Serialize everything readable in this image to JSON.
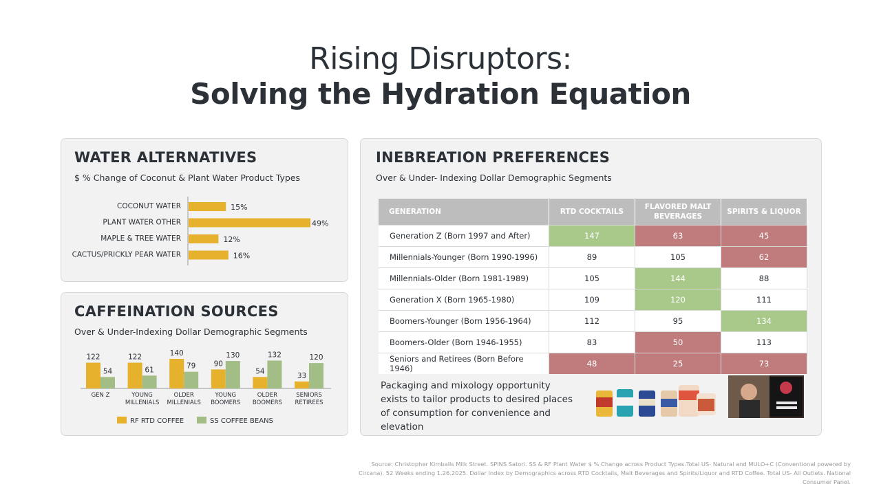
{
  "title": {
    "line1": "Rising Disruptors:",
    "line2": "Solving the Hydration Equation"
  },
  "water": {
    "heading": "WATER ALTERNATIVES",
    "subtitle": "$ % Change of Coconut & Plant Water Product Types"
  },
  "caffeination": {
    "heading": "CAFFEINATION SOURCES",
    "subtitle": "Over & Under-Indexing Dollar Demographic Segments"
  },
  "inebriation": {
    "heading": "INEBREATION PREFERENCES",
    "subtitle": "Over & Under- Indexing Dollar Demographic Segments",
    "opportunity_text": "Packaging and mixology opportunity exists to tailor products to desired places of consumption for convenience and elevation"
  },
  "colors": {
    "over_index": "#a9c98b",
    "under_index": "#c07b7d",
    "rf_rtd_coffee": "#e6b12c",
    "ss_coffee_beans": "#a3bd86",
    "header_gray": "#bdbdbd"
  },
  "chart_data": [
    {
      "type": "bar",
      "orientation": "horizontal",
      "categories": [
        "COCONUT WATER",
        "PLANT WATER OTHER",
        "MAPLE & TREE WATER",
        "CACTUS/PRICKLY PEAR WATER"
      ],
      "values": [
        15,
        49,
        12,
        16
      ],
      "value_labels": [
        "15%",
        "49%",
        "12%",
        "16%"
      ],
      "color": "#e6b12c",
      "xlim": [
        0,
        49
      ]
    },
    {
      "type": "bar",
      "orientation": "vertical",
      "categories": [
        "GEN Z",
        "YOUNG MILLENIALS",
        "OLDER MILLENIALS",
        "YOUNG BOOMERS",
        "OLDER BOOMERS",
        "SENIORS RETIREES"
      ],
      "category_lines": [
        [
          "GEN Z"
        ],
        [
          "YOUNG",
          "MILLENIALS"
        ],
        [
          "OLDER",
          "MILLENIALS"
        ],
        [
          "YOUNG",
          "BOOMERS"
        ],
        [
          "OLDER",
          "BOOMERS"
        ],
        [
          "SENIORS",
          "RETIREES"
        ]
      ],
      "series": [
        {
          "name": "RF RTD COFFEE",
          "values": [
            122,
            122,
            140,
            90,
            54,
            33
          ],
          "color": "#e6b12c"
        },
        {
          "name": "SS COFFEE BEANS",
          "values": [
            54,
            61,
            79,
            130,
            132,
            120
          ],
          "color": "#a3bd86"
        }
      ],
      "ylim": [
        0,
        140
      ],
      "legend": "bottom"
    },
    {
      "type": "table",
      "columns": [
        "GENERATION",
        "RTD COCKTAILS",
        "FLAVORED MALT BEVERAGES",
        "SPIRITS & LIQUOR"
      ],
      "column_lines": [
        [
          "GENERATION"
        ],
        [
          "RTD COCKTAILS"
        ],
        [
          "FLAVORED MALT",
          "BEVERAGES"
        ],
        [
          "SPIRITS & LIQUOR"
        ]
      ],
      "rows": [
        {
          "generation": "Generation Z (Born 1997 and After)",
          "values": [
            147,
            63,
            45
          ],
          "status": [
            "over",
            "under",
            "under"
          ]
        },
        {
          "generation": "Millennials-Younger (Born 1990-1996)",
          "values": [
            89,
            105,
            62
          ],
          "status": [
            "",
            "",
            "under"
          ]
        },
        {
          "generation": "Millennials-Older (Born 1981-1989)",
          "values": [
            105,
            144,
            88
          ],
          "status": [
            "",
            "over",
            ""
          ]
        },
        {
          "generation": "Generation X (Born 1965-1980)",
          "values": [
            109,
            120,
            111
          ],
          "status": [
            "",
            "over",
            ""
          ]
        },
        {
          "generation": "Boomers-Younger (Born 1956-1964)",
          "values": [
            112,
            95,
            134
          ],
          "status": [
            "",
            "",
            "over"
          ]
        },
        {
          "generation": "Boomers-Older (Born 1946-1955)",
          "values": [
            83,
            50,
            113
          ],
          "status": [
            "",
            "under",
            ""
          ]
        },
        {
          "generation": "Seniors and Retirees (Born Before 1946)",
          "values": [
            48,
            25,
            73
          ],
          "status": [
            "under",
            "under",
            "under"
          ]
        }
      ]
    }
  ],
  "source": "Source: Christopher Kimballs Milk Street. SPINS Satori. SS & RF Plant Water $ % Change across Product Types.Total US- Natural and MULO+C (Conventional powered by Circana). 52 Weeks ending 1.26.2025. Dollar Index by Demographics across RTD Cocktails, Malt Beverages and Spirits/Liquor and RTD Coffee. Total US- All Outlets. National Consumer Panel."
}
